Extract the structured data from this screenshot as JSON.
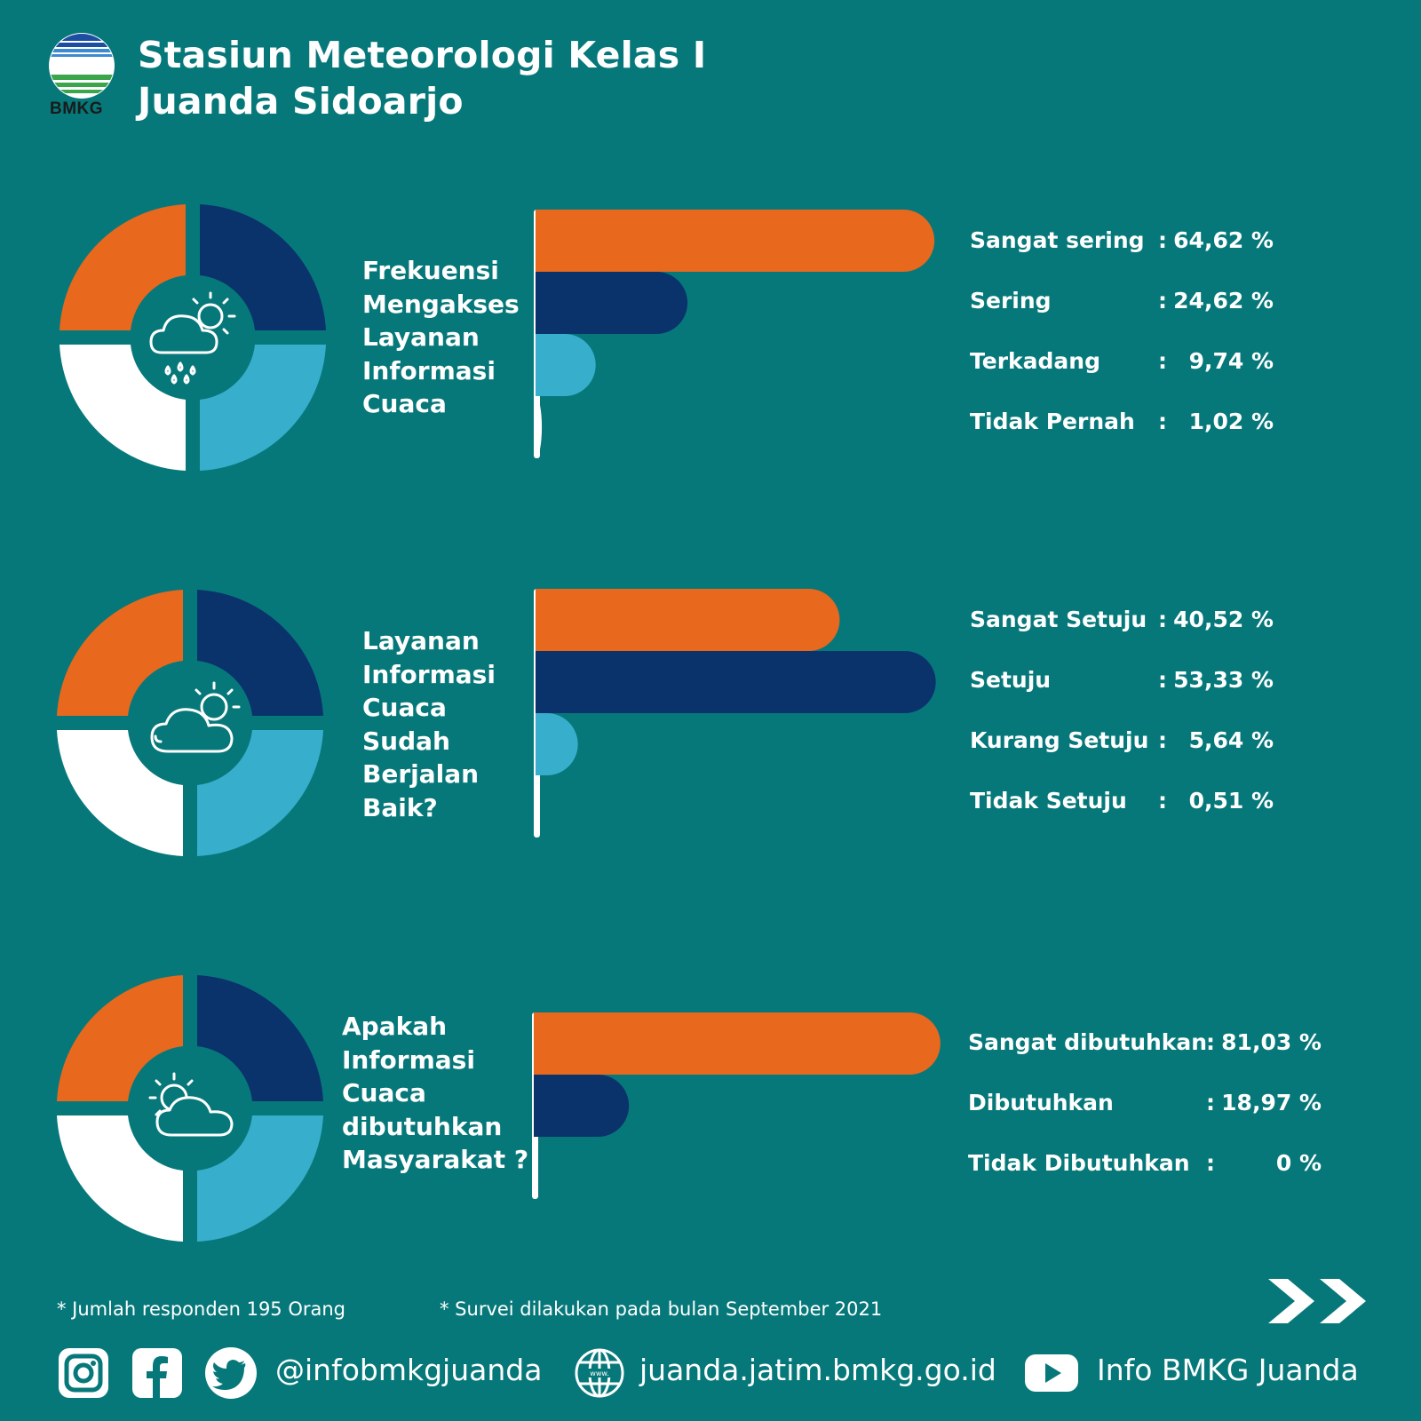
{
  "header": {
    "title_line1": "Stasiun Meteorologi Kelas I",
    "title_line2": "Juanda Sidoarjo",
    "logo_text": "BMKG"
  },
  "colors": {
    "background": "#07787a",
    "orange": "#e8681e",
    "navy": "#0a336c",
    "light_blue": "#38aecd",
    "white": "#ffffff"
  },
  "chart_data": [
    {
      "type": "bar",
      "title": "Frekuensi Mengakses Layanan Informasi Cuaca",
      "categories": [
        "Sangat sering",
        "Sering",
        "Terkadang",
        "Tidak Pernah"
      ],
      "values": [
        64.62,
        24.62,
        9.74,
        1.02
      ],
      "value_labels": [
        "64,62 %",
        "24,62 %",
        "9,74 %",
        "1,02 %"
      ],
      "colors": [
        "#e8681e",
        "#0a336c",
        "#38aecd",
        "#ffffff"
      ],
      "icon": "cloud-rain-sun-icon"
    },
    {
      "type": "bar",
      "title": "Layanan Informasi Cuaca Sudah Berjalan Baik?",
      "categories": [
        "Sangat Setuju",
        "Setuju",
        "Kurang Setuju",
        "Tidak Setuju"
      ],
      "values": [
        40.52,
        53.33,
        5.64,
        0.51
      ],
      "value_labels": [
        "40,52 %",
        "53,33 %",
        "5,64 %",
        "0,51 %"
      ],
      "colors": [
        "#e8681e",
        "#0a336c",
        "#38aecd",
        "#ffffff"
      ],
      "icon": "cloud-sun-icon"
    },
    {
      "type": "bar",
      "title": "Apakah Informasi Cuaca dibutuhkan Masyarakat ?",
      "categories": [
        "Sangat dibutuhkan",
        "Dibutuhkan",
        "Tidak Dibutuhkan"
      ],
      "values": [
        81.03,
        18.97,
        0
      ],
      "value_labels": [
        "81,03 %",
        "18,97 %",
        "0 %"
      ],
      "colors": [
        "#e8681e",
        "#0a336c",
        "#38aecd"
      ],
      "icon": "sun-cloud-icon"
    }
  ],
  "questions": [
    [
      "Frekuensi",
      "Mengakses",
      "Layanan",
      "Informasi",
      "Cuaca"
    ],
    [
      "Layanan",
      "Informasi",
      "Cuaca",
      "Sudah",
      "Berjalan",
      "Baik?"
    ],
    [
      "Apakah",
      "Informasi",
      "Cuaca",
      "dibutuhkan",
      "Masyarakat ?"
    ]
  ],
  "notes": {
    "respondents": "* Jumlah responden 195 Orang",
    "survey_date": "* Survei dilakukan pada bulan September 2021"
  },
  "footer": {
    "handle": "@infobmkgjuanda",
    "website": "juanda.jatim.bmkg.go.id",
    "youtube": "Info BMKG Juanda",
    "icons": [
      "instagram-icon",
      "facebook-icon",
      "twitter-icon",
      "globe-icon",
      "youtube-icon",
      "double-chevron-right-icon"
    ]
  }
}
